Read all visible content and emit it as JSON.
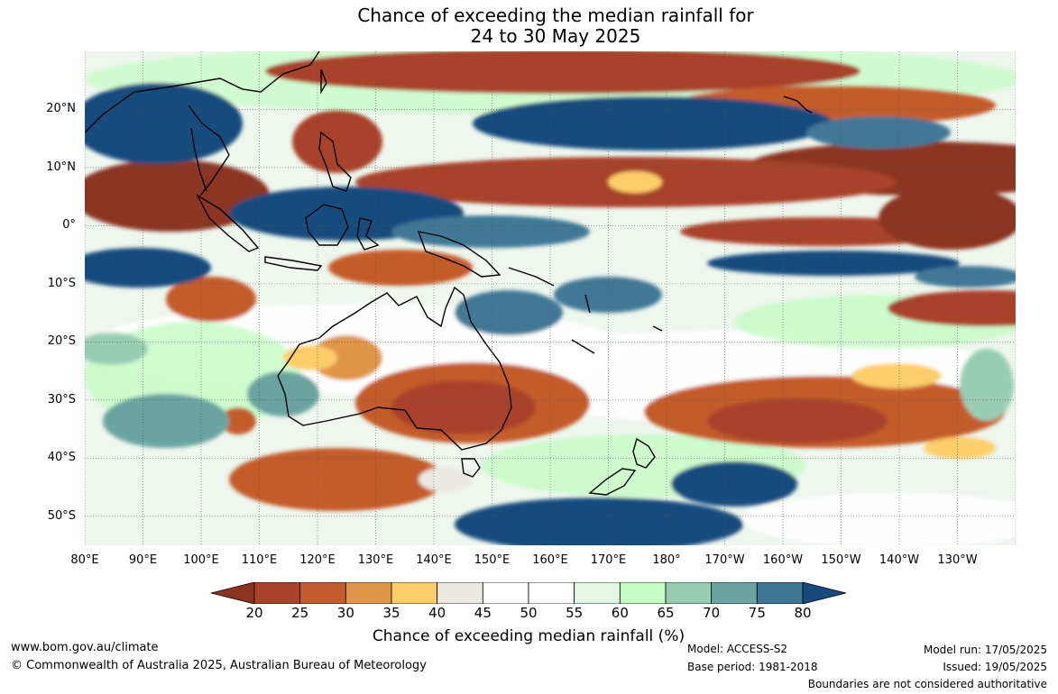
{
  "title": {
    "line1": "Chance of exceeding the median rainfall for",
    "line2": "24 to 30 May 2025"
  },
  "map": {
    "lat_labels": [
      "20°N",
      "10°N",
      "0°",
      "10°S",
      "20°S",
      "30°S",
      "40°S",
      "50°S"
    ],
    "lon_labels": [
      "80°E",
      "90°E",
      "100°E",
      "110°E",
      "120°E",
      "130°E",
      "140°E",
      "150°E",
      "160°E",
      "170°E",
      "180°",
      "170°W",
      "160°W",
      "150°W",
      "140°W",
      "130°W"
    ],
    "extent": {
      "lon_min": 80,
      "lon_max": 240,
      "lat_min": -55,
      "lat_max": 30
    },
    "gridlines": "dotted",
    "regions": [
      {
        "desc": "Indochina / South China Sea wet",
        "lon": 103,
        "lat": 17,
        "pct": 80
      },
      {
        "desc": "North Pacific subtropics wet",
        "lon": 185,
        "lat": 18,
        "pct": 80
      },
      {
        "desc": "Maritime Continent wet",
        "lon": 132,
        "lat": 2,
        "pct": 80
      },
      {
        "desc": "Equatorial Indian Ocean dry",
        "lon": 95,
        "lat": 6,
        "pct": 20
      },
      {
        "desc": "Western Pacific 10N dry",
        "lon": 170,
        "lat": 9,
        "pct": 20
      },
      {
        "desc": "Eastern Pacific equator dry",
        "lon": 225,
        "lat": 2,
        "pct": 20
      },
      {
        "desc": "Southern Australia dry",
        "lon": 140,
        "lat": -32,
        "pct": 25
      },
      {
        "desc": "South Pacific 30S dry",
        "lon": 212,
        "lat": -33,
        "pct": 25
      },
      {
        "desc": "Southern Indian Ocean dry",
        "lon": 117,
        "lat": -45,
        "pct": 25
      },
      {
        "desc": "South of New Zealand wet",
        "lon": 178,
        "lat": -51,
        "pct": 80
      },
      {
        "desc": "SPCZ wet",
        "lon": 170,
        "lat": -12,
        "pct": 80
      },
      {
        "desc": "Indian Ocean south wet",
        "lon": 88,
        "lat": -32,
        "pct": 75
      }
    ]
  },
  "colorbar": {
    "ticks": [
      "20",
      "25",
      "30",
      "35",
      "40",
      "45",
      "50",
      "55",
      "60",
      "65",
      "70",
      "75",
      "80"
    ],
    "colors": [
      "#8b3420",
      "#a8432a",
      "#c45c2c",
      "#e0954a",
      "#fdcd6a",
      "#ece8e2",
      "#ffffff",
      "#ffffff",
      "#e4f7e4",
      "#c4fcc4",
      "#98cdb4",
      "#6aa4a0",
      "#3f7896",
      "#174b7e"
    ],
    "label": "Chance of exceeding median rainfall (%)"
  },
  "footer": {
    "url": "www.bom.gov.au/climate",
    "copyright": "© Commonwealth of Australia 2025, Australian Bureau of Meteorology",
    "model": "Model: ACCESS-S2",
    "base_period": "Base period: 1981-2018",
    "model_run": "Model run: 17/05/2025",
    "issued": "Issued: 19/05/2025",
    "disclaimer": "Boundaries are not considered authoritative"
  }
}
